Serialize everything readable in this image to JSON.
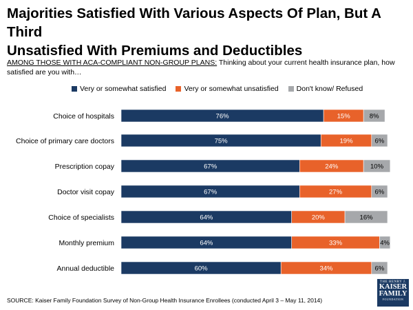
{
  "title_line1": "Majorities Satisfied With Various Aspects Of Plan, But A Third",
  "title_line2": "Unsatisfied With Premiums and Deductibles",
  "subtitle_lead": "AMONG THOSE WITH ACA-COMPLIANT NON-GROUP PLANS:",
  "subtitle_text": " Thinking about your current health insurance plan, how satisfied are you with…",
  "footer": "SOURCE: Kaiser Family Foundation Survey of Non-Group Health Insurance Enrollees (conducted April 3 – May 11, 2014)",
  "logo": {
    "line1": "THE HENRY J.",
    "line2": "KAISER",
    "line3": "FAMILY",
    "line4": "FOUNDATION"
  },
  "colors": {
    "satisfied": "#1b3a63",
    "unsatisfied": "#e8622a",
    "dontknow": "#a6a8ab"
  },
  "chart_data": {
    "type": "bar",
    "orientation": "horizontal",
    "stacked": true,
    "categories": [
      "Choice of hospitals",
      "Choice of primary care doctors",
      "Prescription copay",
      "Doctor visit copay",
      "Choice of specialists",
      "Monthly premium",
      "Annual deductible"
    ],
    "series": [
      {
        "name": "Very or somewhat satisfied",
        "values": [
          76,
          75,
          67,
          67,
          64,
          64,
          60
        ]
      },
      {
        "name": "Very or somewhat unsatisfied",
        "values": [
          15,
          19,
          24,
          27,
          20,
          33,
          34
        ]
      },
      {
        "name": "Don't know/ Refused",
        "values": [
          8,
          6,
          10,
          6,
          16,
          4,
          6
        ]
      }
    ],
    "value_suffix": "%",
    "xlim": [
      0,
      100
    ],
    "legend_position": "top"
  }
}
